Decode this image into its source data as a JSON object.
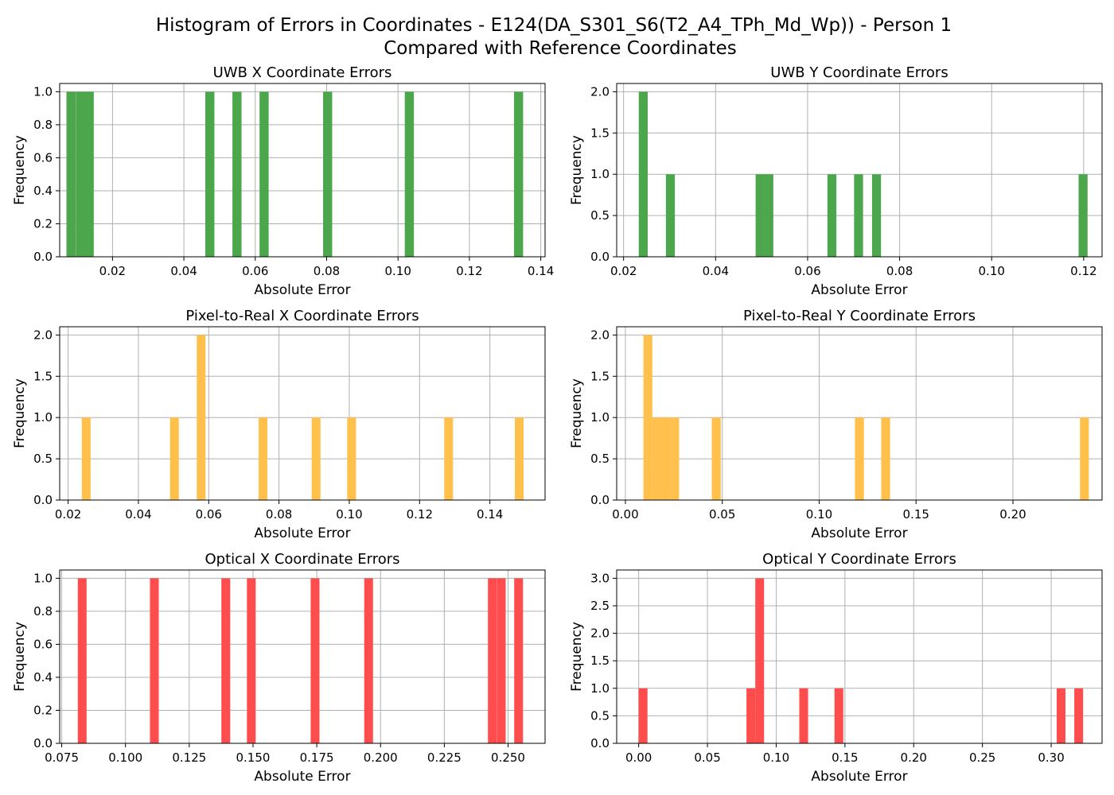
{
  "figure": {
    "suptitle_line1": "Histogram of Errors in Coordinates - E124(DA_S301_S6(T2_A4_TPh_Md_Wp)) - Person 1",
    "suptitle_line2": "Compared with Reference Coordinates"
  },
  "chart_data": [
    {
      "type": "bar",
      "title": "UWB X Coordinate Errors",
      "xlabel": "Absolute Error",
      "ylabel": "Frequency",
      "color": "#4ca64c",
      "xlim": [
        0.0052,
        0.1412
      ],
      "ylim": [
        0,
        1.05
      ],
      "xticks": [
        0.02,
        0.04,
        0.06,
        0.08,
        0.1,
        0.12,
        0.14
      ],
      "xtick_labels": [
        "0.02",
        "0.04",
        "0.06",
        "0.08",
        "0.10",
        "0.12",
        "0.14"
      ],
      "yticks": [
        0.0,
        0.2,
        0.4,
        0.6,
        0.8,
        1.0
      ],
      "ytick_labels": [
        "0.0",
        "0.2",
        "0.4",
        "0.6",
        "0.8",
        "1.0"
      ],
      "bin_width": 0.00255,
      "bars": [
        {
          "x": 0.0071,
          "height": 1
        },
        {
          "x": 0.0097,
          "height": 1
        },
        {
          "x": 0.0122,
          "height": 1
        },
        {
          "x": 0.046,
          "height": 1
        },
        {
          "x": 0.0536,
          "height": 1
        },
        {
          "x": 0.0612,
          "height": 1
        },
        {
          "x": 0.079,
          "height": 1
        },
        {
          "x": 0.1019,
          "height": 1
        },
        {
          "x": 0.1325,
          "height": 1
        }
      ]
    },
    {
      "type": "bar",
      "title": "UWB Y Coordinate Errors",
      "xlabel": "Absolute Error",
      "ylabel": "Frequency",
      "color": "#4ca64c",
      "xlim": [
        0.0185,
        0.124
      ],
      "ylim": [
        0,
        2.1
      ],
      "xticks": [
        0.02,
        0.04,
        0.06,
        0.08,
        0.1,
        0.12
      ],
      "xtick_labels": [
        "0.02",
        "0.04",
        "0.06",
        "0.08",
        "0.10",
        "0.12"
      ],
      "yticks": [
        0.0,
        0.5,
        1.0,
        1.5,
        2.0
      ],
      "ytick_labels": [
        "0.0",
        "0.5",
        "1.0",
        "1.5",
        "2.0"
      ],
      "bin_width": 0.00195,
      "bars": [
        {
          "x": 0.0233,
          "height": 2
        },
        {
          "x": 0.0292,
          "height": 1
        },
        {
          "x": 0.0487,
          "height": 1
        },
        {
          "x": 0.0506,
          "height": 1
        },
        {
          "x": 0.0643,
          "height": 1
        },
        {
          "x": 0.0701,
          "height": 1
        },
        {
          "x": 0.074,
          "height": 1
        },
        {
          "x": 0.1189,
          "height": 1
        }
      ]
    },
    {
      "type": "bar",
      "title": "Pixel-to-Real X Coordinate Errors",
      "xlabel": "Absolute Error",
      "ylabel": "Frequency",
      "color": "#ffc04c",
      "xlim": [
        0.0176,
        0.1557
      ],
      "ylim": [
        0,
        2.1
      ],
      "xticks": [
        0.02,
        0.04,
        0.06,
        0.08,
        0.1,
        0.12,
        0.14
      ],
      "xtick_labels": [
        "0.02",
        "0.04",
        "0.06",
        "0.08",
        "0.10",
        "0.12",
        "0.14"
      ],
      "yticks": [
        0.0,
        0.5,
        1.0,
        1.5,
        2.0
      ],
      "ytick_labels": [
        "0.0",
        "0.5",
        "1.0",
        "1.5",
        "2.0"
      ],
      "bin_width": 0.0025,
      "bars": [
        {
          "x": 0.0239,
          "height": 1
        },
        {
          "x": 0.049,
          "height": 1
        },
        {
          "x": 0.0566,
          "height": 2
        },
        {
          "x": 0.0742,
          "height": 1
        },
        {
          "x": 0.0893,
          "height": 1
        },
        {
          "x": 0.0994,
          "height": 1
        },
        {
          "x": 0.127,
          "height": 1
        },
        {
          "x": 0.1471,
          "height": 1
        }
      ]
    },
    {
      "type": "bar",
      "title": "Pixel-to-Real Y Coordinate Errors",
      "xlabel": "Absolute Error",
      "ylabel": "Frequency",
      "color": "#ffc04c",
      "xlim": [
        -0.0045,
        0.246
      ],
      "ylim": [
        0,
        2.1
      ],
      "xticks": [
        0.0,
        0.05,
        0.1,
        0.15,
        0.2
      ],
      "xtick_labels": [
        "0.00",
        "0.05",
        "0.10",
        "0.15",
        "0.20"
      ],
      "yticks": [
        0.0,
        0.5,
        1.0,
        1.5,
        2.0
      ],
      "ytick_labels": [
        "0.0",
        "0.5",
        "1.0",
        "1.5",
        "2.0"
      ],
      "bin_width": 0.0046,
      "bars": [
        {
          "x": 0.0093,
          "height": 2
        },
        {
          "x": 0.0139,
          "height": 1
        },
        {
          "x": 0.0185,
          "height": 1
        },
        {
          "x": 0.0231,
          "height": 1
        },
        {
          "x": 0.0446,
          "height": 1
        },
        {
          "x": 0.1185,
          "height": 1
        },
        {
          "x": 0.132,
          "height": 1
        },
        {
          "x": 0.2346,
          "height": 1
        }
      ]
    },
    {
      "type": "bar",
      "title": "Optical X Coordinate Errors",
      "xlabel": "Absolute Error",
      "ylabel": "Frequency",
      "color": "#ff4c4c",
      "xlim": [
        0.0742,
        0.2645
      ],
      "ylim": [
        0,
        1.05
      ],
      "xticks": [
        0.075,
        0.1,
        0.125,
        0.15,
        0.175,
        0.2,
        0.225,
        0.25
      ],
      "xtick_labels": [
        "0.075",
        "0.100",
        "0.125",
        "0.150",
        "0.175",
        "0.200",
        "0.225",
        "0.250"
      ],
      "yticks": [
        0.0,
        0.2,
        0.4,
        0.6,
        0.8,
        1.0
      ],
      "ytick_labels": [
        "0.0",
        "0.2",
        "0.4",
        "0.6",
        "0.8",
        "1.0"
      ],
      "bin_width": 0.00345,
      "bars": [
        {
          "x": 0.0813,
          "height": 1
        },
        {
          "x": 0.1096,
          "height": 1
        },
        {
          "x": 0.1376,
          "height": 1
        },
        {
          "x": 0.1476,
          "height": 1
        },
        {
          "x": 0.1726,
          "height": 1
        },
        {
          "x": 0.1936,
          "height": 1
        },
        {
          "x": 0.2421,
          "height": 1
        },
        {
          "x": 0.2456,
          "height": 1
        },
        {
          "x": 0.2524,
          "height": 1
        }
      ]
    },
    {
      "type": "bar",
      "title": "Optical Y Coordinate Errors",
      "xlabel": "Absolute Error",
      "ylabel": "Frequency",
      "color": "#ff4c4c",
      "xlim": [
        -0.016,
        0.337
      ],
      "ylim": [
        0,
        3.15
      ],
      "xticks": [
        0.0,
        0.05,
        0.1,
        0.15,
        0.2,
        0.25,
        0.3
      ],
      "xtick_labels": [
        "0.00",
        "0.05",
        "0.10",
        "0.15",
        "0.20",
        "0.25",
        "0.30"
      ],
      "yticks": [
        0.0,
        0.5,
        1.0,
        1.5,
        2.0,
        2.5,
        3.0
      ],
      "ytick_labels": [
        "0.0",
        "0.5",
        "1.0",
        "1.5",
        "2.0",
        "2.5",
        "3.0"
      ],
      "bin_width": 0.0064,
      "bars": [
        {
          "x": 0.0,
          "height": 1
        },
        {
          "x": 0.0784,
          "height": 1
        },
        {
          "x": 0.0848,
          "height": 3
        },
        {
          "x": 0.1168,
          "height": 1
        },
        {
          "x": 0.1424,
          "height": 1
        },
        {
          "x": 0.304,
          "height": 1
        },
        {
          "x": 0.3168,
          "height": 1
        }
      ]
    }
  ]
}
